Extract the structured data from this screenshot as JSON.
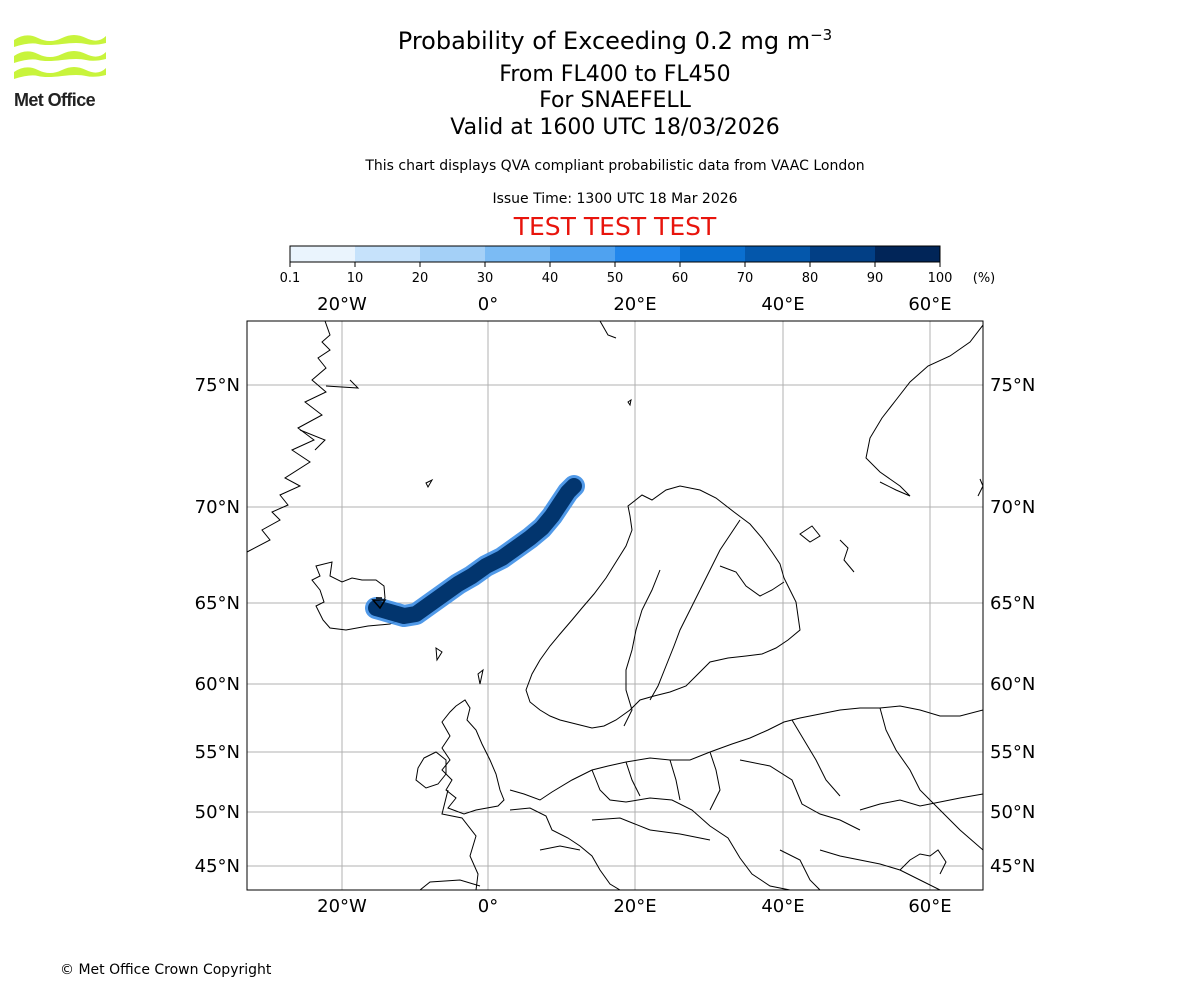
{
  "logo": {
    "text": "Met Office",
    "color": "#c8f43c"
  },
  "title": {
    "line1_prefix": "Probability of Exceeding 0.2 mg m",
    "line1_exponent": "−3",
    "line2": "From FL400 to FL450",
    "line3": "For SNAEFELL",
    "line4": "Valid at 1600 UTC 18/03/2026"
  },
  "note": "This chart displays QVA compliant probabilistic data from VAAC London",
  "issue_time": "Issue Time: 1300 UTC 18 Mar 2026",
  "test_banner": {
    "text": "TEST TEST TEST",
    "color": "#e8140c"
  },
  "colorbar": {
    "ticks": [
      "0.1",
      "10",
      "20",
      "30",
      "40",
      "50",
      "60",
      "70",
      "80",
      "90",
      "100"
    ],
    "unit": "(%)",
    "colors": [
      "#eaf4fd",
      "#c6e2fb",
      "#a4d0f7",
      "#7bbbf4",
      "#4fa2f0",
      "#2287ec",
      "#0a6fd0",
      "#0457ab",
      "#023f85",
      "#012558"
    ]
  },
  "map": {
    "lon_labels": [
      "20°W",
      "0°",
      "20°E",
      "40°E",
      "60°E"
    ],
    "lat_labels": [
      "75°N",
      "70°N",
      "65°N",
      "60°N",
      "55°N",
      "50°N",
      "45°N"
    ],
    "plume_color": "#02356e",
    "plume_edge_color": "#3d8ee6"
  },
  "footer": "© Met Office Crown Copyright"
}
